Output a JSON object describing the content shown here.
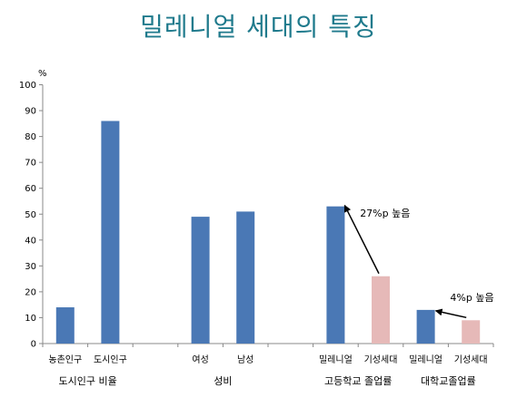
{
  "chart_data": {
    "type": "bar",
    "title": "밀레니얼 세대의 특징",
    "ylabel": "%",
    "ylim": [
      0,
      100
    ],
    "yticks": [
      0,
      10,
      20,
      30,
      40,
      50,
      60,
      70,
      80,
      90,
      100
    ],
    "categories": [
      "농촌인구",
      "도시인구",
      "",
      "여성",
      "남성",
      "",
      "밀레니얼",
      "기성세대",
      "밀레니얼",
      "기성세대"
    ],
    "values": [
      14,
      86,
      null,
      49,
      51,
      null,
      53,
      26,
      13,
      9
    ],
    "bar_colors": [
      "#4a78b5",
      "#4a78b5",
      null,
      "#4a78b5",
      "#4a78b5",
      null,
      "#4a78b5",
      "#e6b9b8",
      "#4a78b5",
      "#e6b9b8"
    ],
    "groups": [
      {
        "label": "도시인구 비율",
        "start": 0,
        "end": 1
      },
      {
        "label": "성비",
        "start": 3,
        "end": 4
      },
      {
        "label": "고등학교 졸업률",
        "start": 6,
        "end": 7
      },
      {
        "label": "대학교졸업률",
        "start": 8,
        "end": 9
      }
    ],
    "annotations": [
      {
        "text": "27%p 높음",
        "from_index": 7,
        "to_index": 6
      },
      {
        "text": "4%p 높음",
        "from_index": 9,
        "to_index": 8
      }
    ],
    "grid": false,
    "legend": "none"
  }
}
